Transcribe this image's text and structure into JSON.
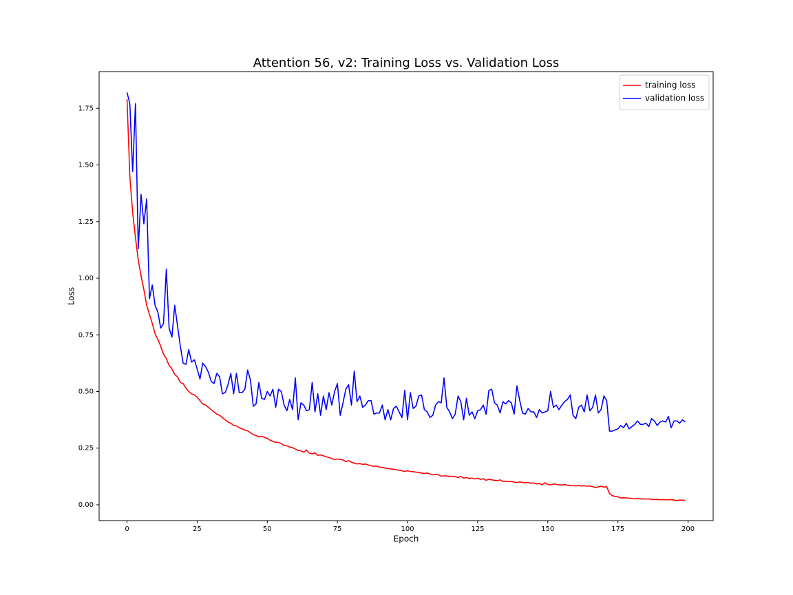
{
  "chart_data": {
    "type": "line",
    "title": "Attention 56, v2: Training Loss vs. Validation Loss",
    "xlabel": "Epoch",
    "ylabel": "Loss",
    "x": [
      0,
      1,
      2,
      3,
      4,
      5,
      6,
      7,
      8,
      9,
      10,
      11,
      12,
      13,
      14,
      15,
      16,
      17,
      18,
      19,
      20,
      21,
      22,
      23,
      24,
      25,
      26,
      27,
      28,
      29,
      30,
      31,
      32,
      33,
      34,
      35,
      36,
      37,
      38,
      39,
      40,
      41,
      42,
      43,
      44,
      45,
      46,
      47,
      48,
      49,
      50,
      51,
      52,
      53,
      54,
      55,
      56,
      57,
      58,
      59,
      60,
      61,
      62,
      63,
      64,
      65,
      66,
      67,
      68,
      69,
      70,
      71,
      72,
      73,
      74,
      75,
      76,
      77,
      78,
      79,
      80,
      81,
      82,
      83,
      84,
      85,
      86,
      87,
      88,
      89,
      90,
      91,
      92,
      93,
      94,
      95,
      96,
      97,
      98,
      99,
      100,
      101,
      102,
      103,
      104,
      105,
      106,
      107,
      108,
      109,
      110,
      111,
      112,
      113,
      114,
      115,
      116,
      117,
      118,
      119,
      120,
      121,
      122,
      123,
      124,
      125,
      126,
      127,
      128,
      129,
      130,
      131,
      132,
      133,
      134,
      135,
      136,
      137,
      138,
      139,
      140,
      141,
      142,
      143,
      144,
      145,
      146,
      147,
      148,
      149,
      150,
      151,
      152,
      153,
      154,
      155,
      156,
      157,
      158,
      159,
      160,
      161,
      162,
      163,
      164,
      165,
      166,
      167,
      168,
      169,
      170,
      171,
      172,
      173,
      174,
      175,
      176,
      177,
      178,
      179,
      180,
      181,
      182,
      183,
      184,
      185,
      186,
      187,
      188,
      189,
      190,
      191,
      192,
      193,
      194,
      195,
      196,
      197,
      198,
      199
    ],
    "series": [
      {
        "name": "training loss",
        "color": "#ff0000",
        "values": [
          1.79,
          1.45,
          1.29,
          1.18,
          1.08,
          1.01,
          0.95,
          0.88,
          0.84,
          0.8,
          0.755,
          0.73,
          0.7,
          0.665,
          0.645,
          0.615,
          0.6,
          0.575,
          0.565,
          0.54,
          0.535,
          0.515,
          0.5,
          0.49,
          0.485,
          0.475,
          0.46,
          0.445,
          0.44,
          0.43,
          0.42,
          0.41,
          0.4,
          0.395,
          0.385,
          0.375,
          0.365,
          0.36,
          0.35,
          0.348,
          0.34,
          0.335,
          0.33,
          0.326,
          0.318,
          0.31,
          0.305,
          0.3,
          0.302,
          0.298,
          0.293,
          0.285,
          0.28,
          0.276,
          0.275,
          0.27,
          0.262,
          0.26,
          0.255,
          0.252,
          0.246,
          0.24,
          0.238,
          0.232,
          0.242,
          0.228,
          0.225,
          0.229,
          0.218,
          0.22,
          0.216,
          0.212,
          0.208,
          0.204,
          0.2,
          0.202,
          0.2,
          0.198,
          0.19,
          0.195,
          0.188,
          0.184,
          0.18,
          0.182,
          0.178,
          0.18,
          0.176,
          0.172,
          0.17,
          0.171,
          0.166,
          0.165,
          0.162,
          0.16,
          0.158,
          0.157,
          0.155,
          0.152,
          0.15,
          0.147,
          0.15,
          0.147,
          0.146,
          0.144,
          0.143,
          0.14,
          0.138,
          0.14,
          0.136,
          0.132,
          0.134,
          0.133,
          0.126,
          0.128,
          0.127,
          0.126,
          0.125,
          0.124,
          0.12,
          0.125,
          0.118,
          0.12,
          0.116,
          0.118,
          0.114,
          0.117,
          0.112,
          0.115,
          0.108,
          0.113,
          0.11,
          0.108,
          0.106,
          0.11,
          0.103,
          0.104,
          0.102,
          0.103,
          0.1,
          0.098,
          0.101,
          0.099,
          0.097,
          0.098,
          0.095,
          0.096,
          0.092,
          0.094,
          0.088,
          0.097,
          0.09,
          0.088,
          0.092,
          0.09,
          0.088,
          0.087,
          0.089,
          0.086,
          0.084,
          0.085,
          0.083,
          0.085,
          0.083,
          0.084,
          0.082,
          0.083,
          0.08,
          0.076,
          0.079,
          0.082,
          0.078,
          0.08,
          0.05,
          0.04,
          0.037,
          0.035,
          0.03,
          0.031,
          0.03,
          0.029,
          0.028,
          0.026,
          0.027,
          0.026,
          0.026,
          0.025,
          0.026,
          0.024,
          0.023,
          0.024,
          0.022,
          0.023,
          0.022,
          0.022,
          0.023,
          0.021,
          0.018,
          0.021,
          0.02,
          0.02
        ]
      },
      {
        "name": "validation loss",
        "color": "#0000ff",
        "values": [
          1.82,
          1.77,
          1.47,
          1.77,
          1.13,
          1.37,
          1.24,
          1.35,
          0.91,
          0.97,
          0.88,
          0.85,
          0.78,
          0.8,
          1.04,
          0.78,
          0.74,
          0.88,
          0.79,
          0.7,
          0.625,
          0.62,
          0.685,
          0.63,
          0.64,
          0.6,
          0.555,
          0.625,
          0.61,
          0.585,
          0.545,
          0.535,
          0.58,
          0.565,
          0.49,
          0.495,
          0.53,
          0.58,
          0.49,
          0.58,
          0.495,
          0.495,
          0.51,
          0.595,
          0.55,
          0.435,
          0.445,
          0.54,
          0.47,
          0.465,
          0.5,
          0.48,
          0.51,
          0.43,
          0.51,
          0.5,
          0.44,
          0.415,
          0.465,
          0.42,
          0.56,
          0.375,
          0.45,
          0.44,
          0.415,
          0.42,
          0.54,
          0.41,
          0.49,
          0.395,
          0.48,
          0.42,
          0.495,
          0.44,
          0.5,
          0.535,
          0.395,
          0.45,
          0.51,
          0.53,
          0.44,
          0.59,
          0.455,
          0.48,
          0.43,
          0.44,
          0.46,
          0.46,
          0.4,
          0.405,
          0.405,
          0.44,
          0.375,
          0.42,
          0.375,
          0.425,
          0.435,
          0.41,
          0.385,
          0.505,
          0.375,
          0.495,
          0.425,
          0.435,
          0.48,
          0.485,
          0.42,
          0.41,
          0.385,
          0.395,
          0.44,
          0.455,
          0.45,
          0.56,
          0.43,
          0.41,
          0.38,
          0.4,
          0.48,
          0.455,
          0.375,
          0.47,
          0.395,
          0.41,
          0.38,
          0.415,
          0.42,
          0.44,
          0.4,
          0.505,
          0.51,
          0.45,
          0.44,
          0.405,
          0.455,
          0.445,
          0.46,
          0.45,
          0.4,
          0.525,
          0.46,
          0.405,
          0.4,
          0.425,
          0.41,
          0.41,
          0.385,
          0.42,
          0.405,
          0.41,
          0.415,
          0.5,
          0.43,
          0.44,
          0.42,
          0.44,
          0.455,
          0.465,
          0.485,
          0.395,
          0.38,
          0.43,
          0.44,
          0.41,
          0.485,
          0.415,
          0.43,
          0.485,
          0.405,
          0.42,
          0.48,
          0.46,
          0.325,
          0.325,
          0.33,
          0.335,
          0.35,
          0.34,
          0.36,
          0.335,
          0.345,
          0.355,
          0.37,
          0.355,
          0.355,
          0.36,
          0.345,
          0.38,
          0.37,
          0.35,
          0.365,
          0.37,
          0.365,
          0.39,
          0.34,
          0.37,
          0.37,
          0.36,
          0.375,
          0.365
        ]
      }
    ],
    "xlim": [
      -9.95,
      208.95
    ],
    "xticks": [
      0,
      25,
      50,
      75,
      100,
      125,
      150,
      175,
      200
    ],
    "ylim": [
      -0.07,
      1.912
    ],
    "yticks": [
      {
        "value": 0,
        "label": "0.00"
      },
      0.25,
      {
        "value": 0.5,
        "label": "0.50"
      },
      0.75,
      {
        "value": 1,
        "label": "1.00"
      },
      1.25,
      {
        "value": 1.5,
        "label": "1.50"
      },
      1.75
    ],
    "legend": "upper right",
    "grid": false
  }
}
